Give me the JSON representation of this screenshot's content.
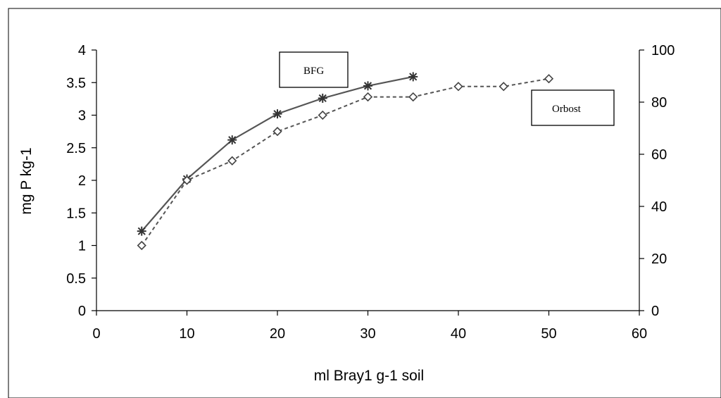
{
  "chart_data": {
    "type": "line",
    "xlabel": "ml Bray1  g-1 soil",
    "ylabel": "mg P kg-1",
    "xlim": [
      0,
      60
    ],
    "ylim": [
      0,
      4
    ],
    "y2lim": [
      0,
      100
    ],
    "x_ticks": [
      "0",
      "10",
      "20",
      "30",
      "40",
      "50",
      "60"
    ],
    "y_ticks": [
      "0",
      "0.5",
      "1",
      "1.5",
      "2",
      "2.5",
      "3",
      "3.5",
      "4"
    ],
    "y2_ticks": [
      "0",
      "20",
      "40",
      "60",
      "80",
      "100"
    ],
    "grid": false,
    "series": [
      {
        "name": "BFG",
        "axis": "left",
        "line": "solid",
        "marker": "star",
        "color": "#555555",
        "x": [
          5,
          10,
          15,
          20,
          25,
          30,
          35
        ],
        "y": [
          1.22,
          2.02,
          2.62,
          3.02,
          3.26,
          3.45,
          3.59
        ]
      },
      {
        "name": "Orbost",
        "axis": "right",
        "line": "dashed",
        "marker": "diamond",
        "color": "#555555",
        "x": [
          5,
          10,
          15,
          20,
          25,
          30,
          35,
          40,
          45,
          50
        ],
        "y": [
          25,
          50,
          57.5,
          68.75,
          75,
          82,
          82,
          86,
          86,
          89
        ]
      }
    ]
  }
}
